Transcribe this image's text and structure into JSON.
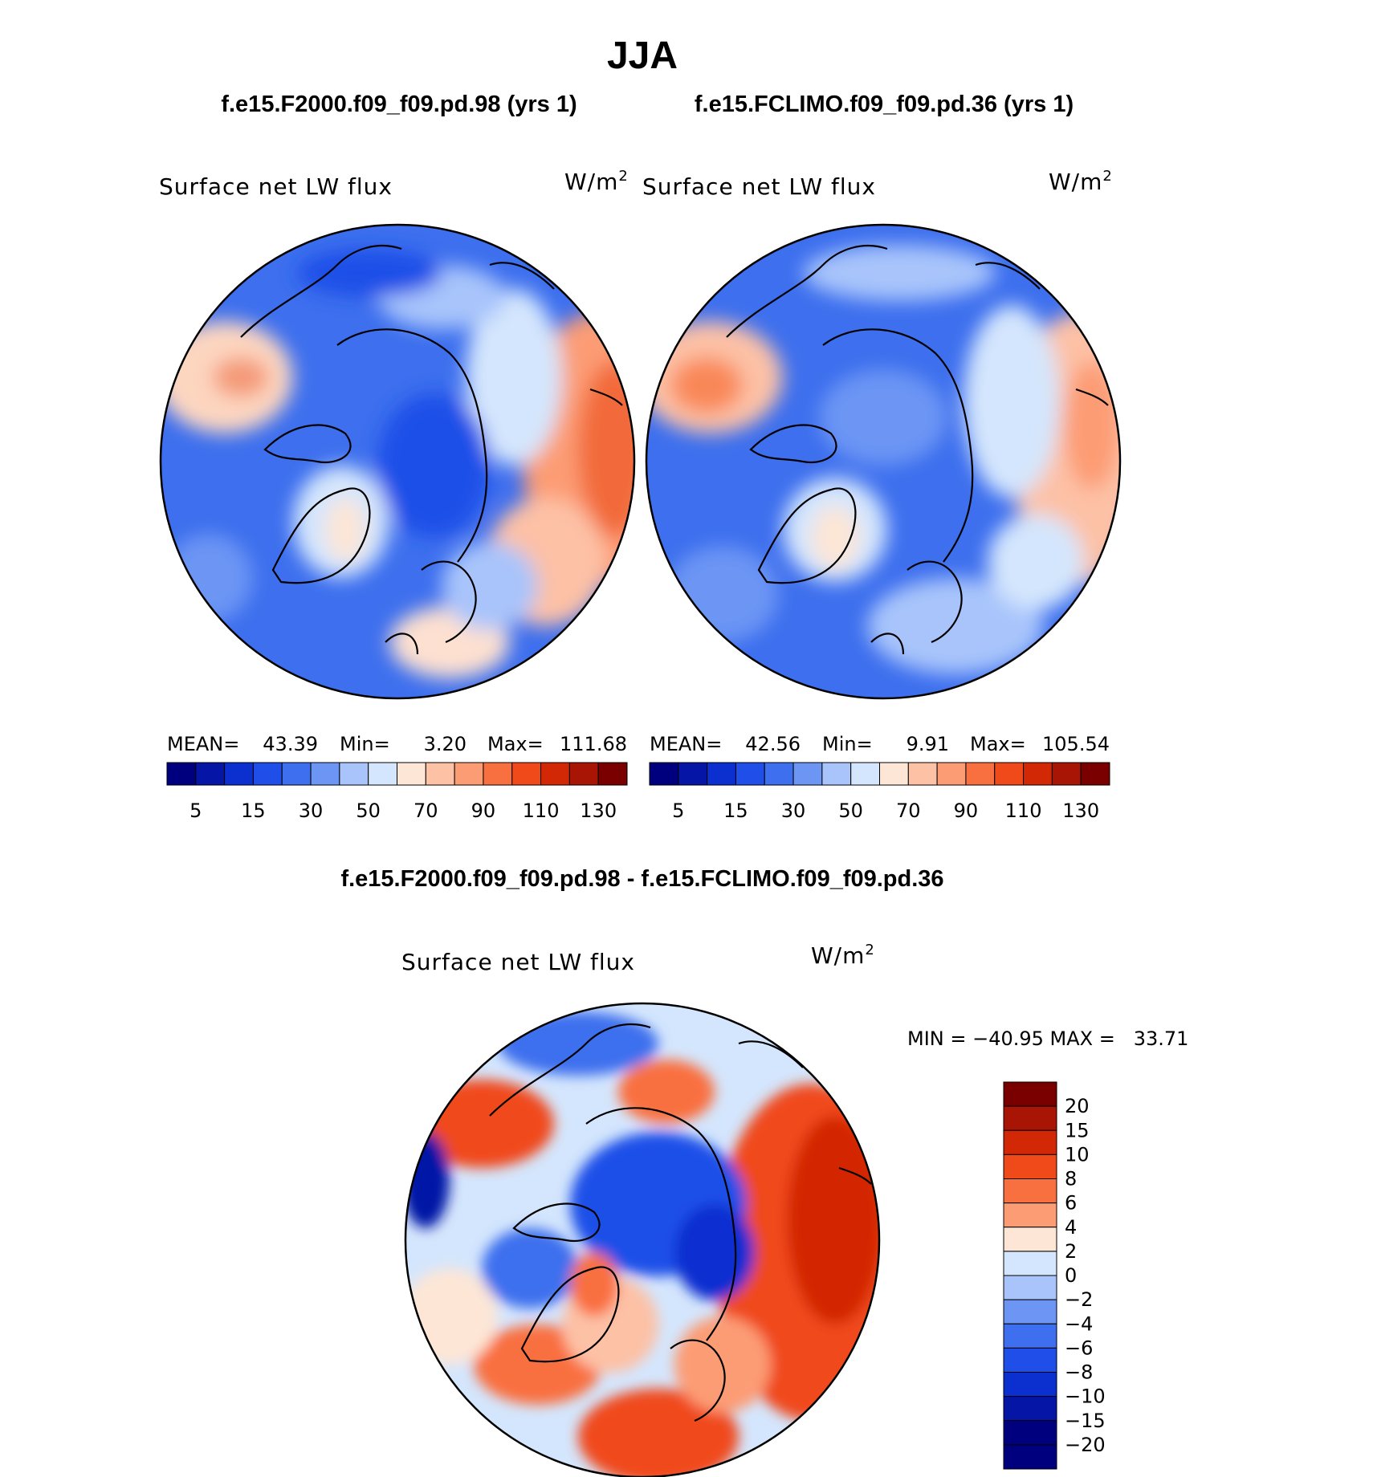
{
  "page": {
    "season_title": "JJA"
  },
  "panels": [
    {
      "case_title": "f.e15.F2000.f09_f09.pd.98 (yrs 1)",
      "variable": "Surface net LW flux",
      "units": "W/m",
      "units_sup": "2",
      "stats": {
        "mean_label": "MEAN=",
        "mean_value": "43.39",
        "min_label": "Min=",
        "min_value": "3.20",
        "max_label": "Max=",
        "max_value": "111.68"
      }
    },
    {
      "case_title": "f.e15.FCLIMO.f09_f09.pd.36 (yrs 1)",
      "variable": "Surface net LW flux",
      "units": "W/m",
      "units_sup": "2",
      "stats": {
        "mean_label": "MEAN=",
        "mean_value": "42.56",
        "min_label": "Min=",
        "min_value": "9.91",
        "max_label": "Max=",
        "max_value": "105.54"
      }
    }
  ],
  "diff_panel": {
    "title": "f.e15.F2000.f09_f09.pd.98 - f.e15.FCLIMO.f09_f09.pd.36",
    "variable": "Surface net LW flux",
    "units": "W/m",
    "units_sup": "2",
    "minmax_text": "MIN = −40.95 MAX =   33.71"
  },
  "chart_data": [
    {
      "type": "heatmap",
      "projection": "north polar stereographic",
      "title": "f.e15.F2000.f09_f09.pd.98 (yrs 1)",
      "variable": "Surface net LW flux",
      "units": "W/m^2",
      "mean": 43.39,
      "min": 3.2,
      "max": 111.68,
      "colorbar_levels": [
        5,
        10,
        15,
        20,
        30,
        40,
        50,
        60,
        70,
        80,
        90,
        100,
        110,
        120,
        130
      ],
      "colorbar_tick_labels": [
        "5",
        "15",
        "30",
        "50",
        "70",
        "90",
        "110",
        "130"
      ],
      "colorbar_colors": [
        "#00007f",
        "#0515a6",
        "#0c2fd0",
        "#1f4fe8",
        "#3d6fee",
        "#6c95f4",
        "#a8c4fb",
        "#d4e6fd",
        "#fde6d6",
        "#fdc1a6",
        "#fc9c74",
        "#f97040",
        "#f04a1a",
        "#d32806",
        "#a81505",
        "#7a0000"
      ]
    },
    {
      "type": "heatmap",
      "projection": "north polar stereographic",
      "title": "f.e15.FCLIMO.f09_f09.pd.36 (yrs 1)",
      "variable": "Surface net LW flux",
      "units": "W/m^2",
      "mean": 42.56,
      "min": 9.91,
      "max": 105.54,
      "colorbar_levels": [
        5,
        10,
        15,
        20,
        30,
        40,
        50,
        60,
        70,
        80,
        90,
        100,
        110,
        120,
        130
      ],
      "colorbar_tick_labels": [
        "5",
        "15",
        "30",
        "50",
        "70",
        "90",
        "110",
        "130"
      ],
      "colorbar_colors": [
        "#00007f",
        "#0515a6",
        "#0c2fd0",
        "#1f4fe8",
        "#3d6fee",
        "#6c95f4",
        "#a8c4fb",
        "#d4e6fd",
        "#fde6d6",
        "#fdc1a6",
        "#fc9c74",
        "#f97040",
        "#f04a1a",
        "#d32806",
        "#a81505",
        "#7a0000"
      ]
    },
    {
      "type": "heatmap",
      "projection": "north polar stereographic",
      "title": "f.e15.F2000.f09_f09.pd.98 - f.e15.FCLIMO.f09_f09.pd.36",
      "variable": "Surface net LW flux",
      "units": "W/m^2",
      "min": -40.95,
      "max": 33.71,
      "colorbar_tick_labels": [
        "20",
        "15",
        "10",
        "8",
        "6",
        "4",
        "2",
        "0",
        "−2",
        "−4",
        "−6",
        "−8",
        "−10",
        "−15",
        "−20"
      ],
      "colorbar_colors": [
        "#7a0000",
        "#a81505",
        "#d32806",
        "#f04a1a",
        "#f97040",
        "#fc9c74",
        "#fde6d6",
        "#d4e6fd",
        "#a8c4fb",
        "#6c95f4",
        "#3d6fee",
        "#1f4fe8",
        "#0c2fd0",
        "#0515a6",
        "#00007f",
        "#00007f"
      ]
    }
  ]
}
